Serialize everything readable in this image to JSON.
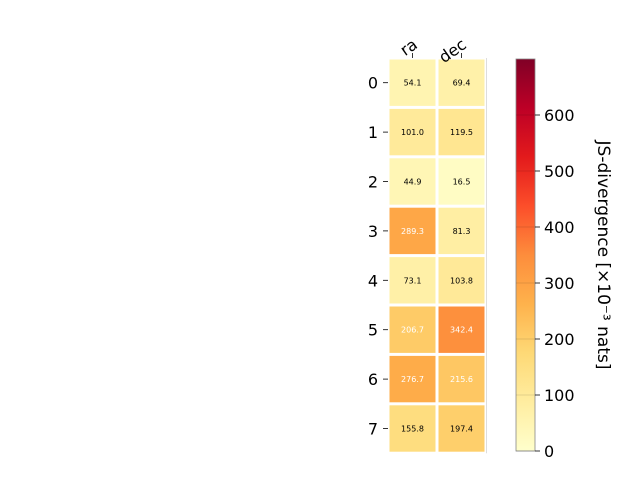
{
  "chart_data": {
    "type": "heatmap",
    "columns": [
      "ra",
      "dec"
    ],
    "rows": [
      "0",
      "1",
      "2",
      "3",
      "4",
      "5",
      "6",
      "7"
    ],
    "values": [
      [
        54.1,
        69.4
      ],
      [
        101.0,
        119.5
      ],
      [
        44.9,
        16.5
      ],
      [
        289.3,
        81.3
      ],
      [
        73.1,
        103.8
      ],
      [
        206.7,
        342.4
      ],
      [
        276.7,
        215.6
      ],
      [
        155.8,
        197.4
      ]
    ],
    "value_labels": [
      [
        "54.1",
        "69.4"
      ],
      [
        "101.0",
        "119.5"
      ],
      [
        "44.9",
        "16.5"
      ],
      [
        "289.3",
        "81.3"
      ],
      [
        "73.1",
        "103.8"
      ],
      [
        "206.7",
        "342.4"
      ],
      [
        "276.7",
        "215.6"
      ],
      [
        "155.8",
        "197.4"
      ]
    ],
    "colorbar": {
      "label": "JS-divergence [×10⁻³ nats]",
      "range": [
        0,
        700
      ],
      "ticks": [
        0,
        100,
        200,
        300,
        400,
        500,
        600
      ],
      "tick_labels": [
        "0",
        "100",
        "200",
        "300",
        "400",
        "500",
        "600"
      ],
      "colormap": "YlOrRd",
      "stops": [
        "#ffffcc",
        "#ffeda0",
        "#fed976",
        "#feb24c",
        "#fd8d3c",
        "#fc4e2a",
        "#e31a1c",
        "#bd0026",
        "#800026"
      ]
    },
    "grid": false,
    "legend": "colorbar-right"
  }
}
